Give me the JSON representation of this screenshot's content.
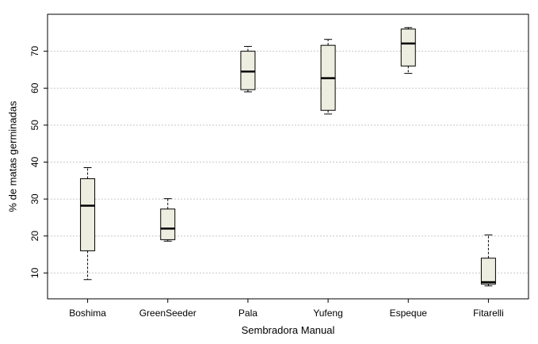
{
  "chart_data": {
    "type": "boxplot",
    "xlabel": "Sembradora Manual",
    "ylabel": "% de matas germinadas",
    "ylim": [
      3,
      80
    ],
    "yticks": [
      10,
      20,
      30,
      40,
      50,
      60,
      70
    ],
    "grid": "horizontal dotted",
    "colors": {
      "box_fill": "#ededE0",
      "stroke": "#000000",
      "grid": "#c8c8c8"
    },
    "categories": [
      "Boshima",
      "GreenSeeder",
      "Pala",
      "Yufeng",
      "Espeque",
      "Fitarelli"
    ],
    "boxes": [
      {
        "name": "Boshima",
        "min": 8.2,
        "q1": 16.0,
        "median": 28.2,
        "q3": 35.5,
        "max": 38.5
      },
      {
        "name": "GreenSeeder",
        "min": 18.6,
        "q1": 19.0,
        "median": 22.0,
        "q3": 27.3,
        "max": 30.1
      },
      {
        "name": "Pala",
        "min": 59.0,
        "q1": 59.6,
        "median": 64.5,
        "q3": 70.0,
        "max": 71.3
      },
      {
        "name": "Yufeng",
        "min": 53.0,
        "q1": 54.0,
        "median": 62.7,
        "q3": 71.6,
        "max": 73.2
      },
      {
        "name": "Espeque",
        "min": 64.0,
        "q1": 66.0,
        "median": 72.1,
        "q3": 76.0,
        "max": 76.4
      },
      {
        "name": "Fitarelli",
        "min": 6.5,
        "q1": 7.0,
        "median": 7.5,
        "q3": 14.0,
        "max": 20.3
      }
    ]
  }
}
